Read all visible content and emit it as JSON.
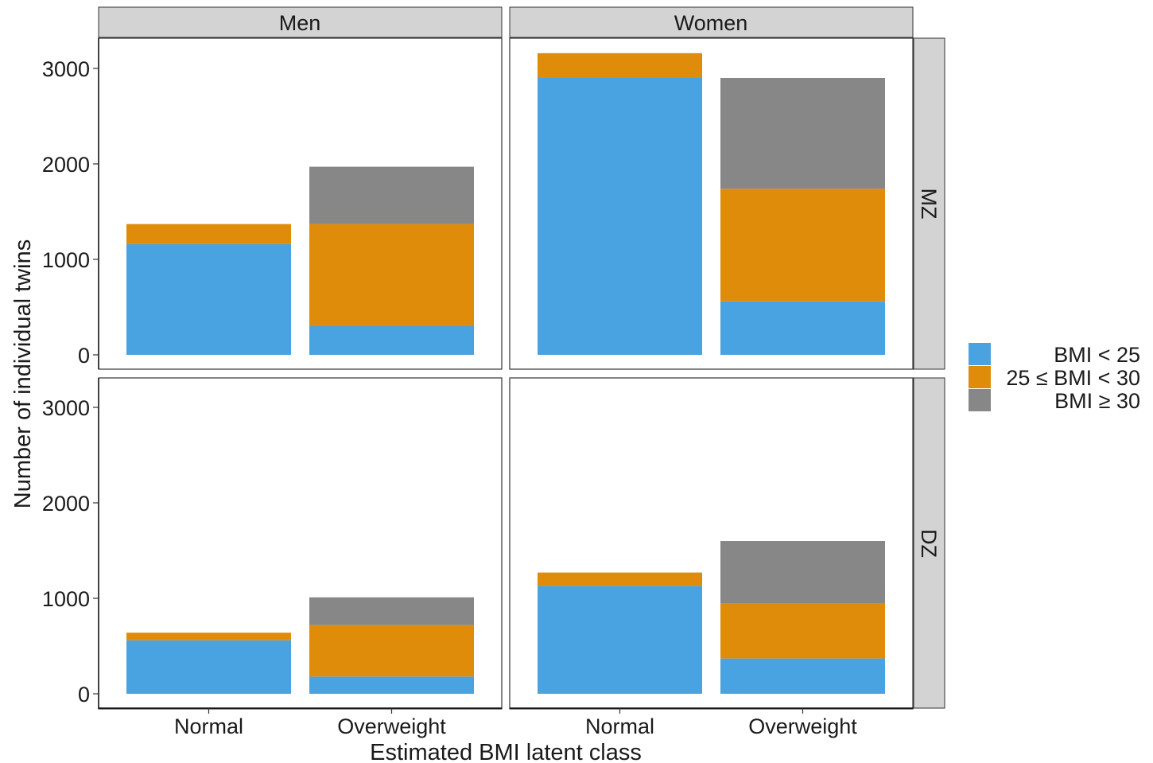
{
  "chart_data": {
    "type": "bar",
    "stacked": true,
    "xlabel": "Estimated BMI latent class",
    "ylabel": "Number of individual twins",
    "ylim": [
      0,
      3300
    ],
    "yticks": [
      0,
      1000,
      2000,
      3000
    ],
    "categories": [
      "Normal",
      "Overweight"
    ],
    "facet_columns": [
      "Men",
      "Women"
    ],
    "facet_rows": [
      "MZ",
      "DZ"
    ],
    "legend": {
      "position": "right",
      "entries": [
        {
          "label": "BMI < 25",
          "color": "#49a3e1"
        },
        {
          "label": "25 ≤ BMI < 30",
          "color": "#df8c0b"
        },
        {
          "label": "BMI  ≥ 30",
          "color": "#878787"
        }
      ]
    },
    "panels": [
      {
        "column": "Men",
        "row": "MZ",
        "series": [
          {
            "name": "BMI < 25",
            "values": [
              1160,
              300
            ]
          },
          {
            "name": "25 ≤ BMI < 30",
            "values": [
              210,
              1070
            ]
          },
          {
            "name": "BMI  ≥ 30",
            "values": [
              0,
              600
            ]
          }
        ]
      },
      {
        "column": "Women",
        "row": "MZ",
        "series": [
          {
            "name": "BMI < 25",
            "values": [
              2900,
              560
            ]
          },
          {
            "name": "25 ≤ BMI < 30",
            "values": [
              260,
              1180
            ]
          },
          {
            "name": "BMI  ≥ 30",
            "values": [
              0,
              1160
            ]
          }
        ]
      },
      {
        "column": "Men",
        "row": "DZ",
        "series": [
          {
            "name": "BMI < 25",
            "values": [
              560,
              180
            ]
          },
          {
            "name": "25 ≤ BMI < 30",
            "values": [
              80,
              540
            ]
          },
          {
            "name": "BMI  ≥ 30",
            "values": [
              0,
              290
            ]
          }
        ]
      },
      {
        "column": "Women",
        "row": "DZ",
        "series": [
          {
            "name": "BMI < 25",
            "values": [
              1130,
              370
            ]
          },
          {
            "name": "25 ≤ BMI < 30",
            "values": [
              140,
              580
            ]
          },
          {
            "name": "BMI  ≥ 30",
            "values": [
              0,
              650
            ]
          }
        ]
      }
    ]
  }
}
